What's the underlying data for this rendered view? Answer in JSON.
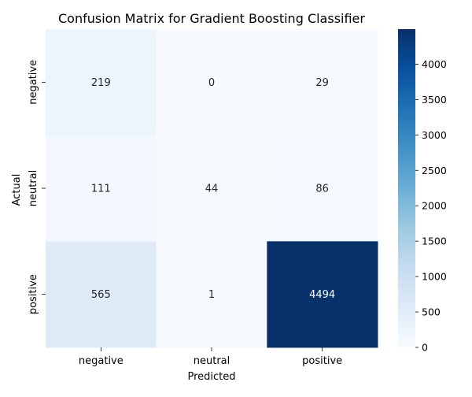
{
  "chart_data": {
    "type": "heatmap",
    "title": "Confusion Matrix for Gradient Boosting Classifier",
    "xlabel": "Predicted",
    "ylabel": "Actual",
    "x_categories": [
      "negative",
      "neutral",
      "positive"
    ],
    "y_categories": [
      "negative",
      "neutral",
      "positive"
    ],
    "values": [
      [
        219,
        0,
        29
      ],
      [
        111,
        44,
        86
      ],
      [
        565,
        1,
        4494
      ]
    ],
    "colormap": "Blues",
    "color_min_hex": "#f7fbff",
    "color_max_hex": "#08306b",
    "vmin": 0,
    "vmax": 4494,
    "colorbar_ticks": [
      0,
      500,
      1000,
      1500,
      2000,
      2500,
      3000,
      3500,
      4000
    ],
    "annotation_text_dark": "#262626",
    "annotation_text_light": "#ffffff"
  }
}
